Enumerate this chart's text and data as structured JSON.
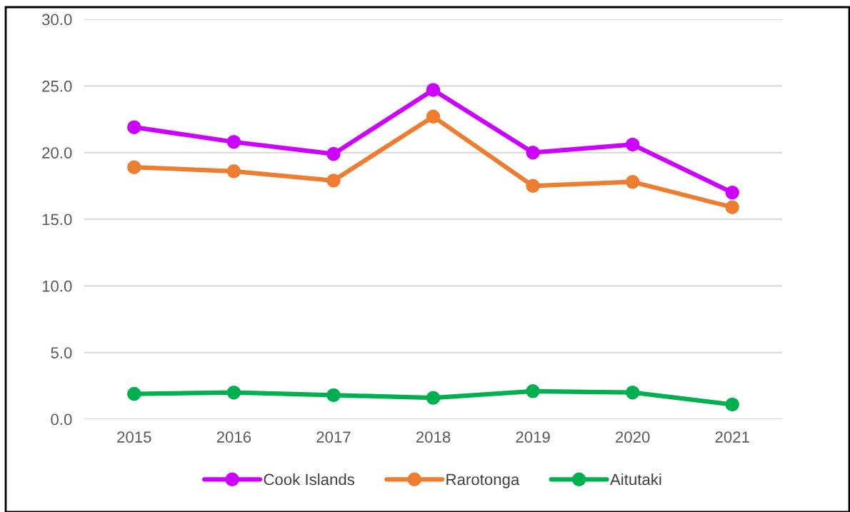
{
  "chart_data": {
    "type": "line",
    "categories": [
      "2015",
      "2016",
      "2017",
      "2018",
      "2019",
      "2020",
      "2021"
    ],
    "series": [
      {
        "name": "Cook Islands",
        "color": "#cc00ff",
        "values": [
          21.9,
          20.8,
          19.9,
          24.7,
          20.0,
          20.6,
          17.0
        ]
      },
      {
        "name": "Rarotonga",
        "color": "#ed7d31",
        "values": [
          18.9,
          18.6,
          17.9,
          22.7,
          17.5,
          17.8,
          15.9
        ]
      },
      {
        "name": "Aitutaki",
        "color": "#00b050",
        "values": [
          1.9,
          2.0,
          1.8,
          1.6,
          2.1,
          2.0,
          1.1
        ]
      }
    ],
    "ylim": [
      0,
      30
    ],
    "yticks": [
      {
        "value": 0,
        "label": "0.0"
      },
      {
        "value": 5,
        "label": "5.0"
      },
      {
        "value": 10,
        "label": "10.0"
      },
      {
        "value": 15,
        "label": "15.0"
      },
      {
        "value": 20,
        "label": "20.0"
      },
      {
        "value": 25,
        "label": "25.0"
      },
      {
        "value": 30,
        "label": "30.0"
      }
    ],
    "grid": "y",
    "legend": "bottom",
    "marker": "circle",
    "line_style": "solid"
  }
}
